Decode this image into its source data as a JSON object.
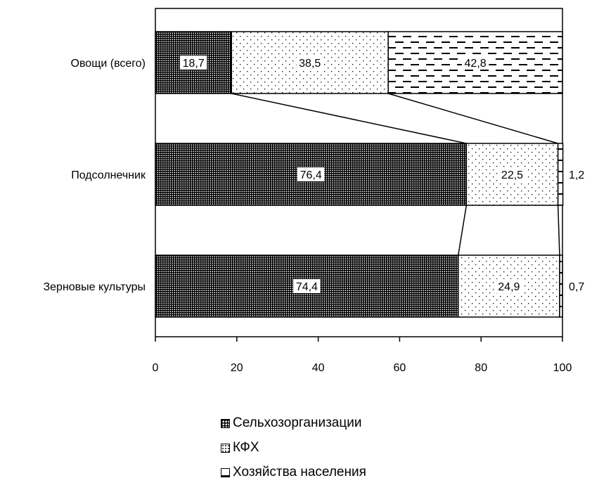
{
  "chart_data": {
    "type": "bar",
    "orientation": "horizontal",
    "stacked": true,
    "categories": [
      "Овощи (всего)",
      "Подсолнечник",
      "Зерновые культуры"
    ],
    "series": [
      {
        "name": "Сельхозорганизации",
        "values": [
          18.7,
          76.4,
          74.4
        ],
        "labels": [
          "18,7",
          "76,4",
          "74,4"
        ],
        "pattern": "grid"
      },
      {
        "name": "КФХ",
        "values": [
          38.5,
          22.5,
          24.9
        ],
        "labels": [
          "38,5",
          "22,5",
          "24,9"
        ],
        "pattern": "dots"
      },
      {
        "name": "Хозяйства населения",
        "values": [
          42.8,
          1.2,
          0.7
        ],
        "labels": [
          "42,8",
          "1,2",
          "0,7"
        ],
        "pattern": "dashes"
      }
    ],
    "xlim": [
      0,
      100
    ],
    "xticks": [
      "0",
      "20",
      "40",
      "60",
      "80",
      "100"
    ],
    "series_lines": true,
    "legend_position": "bottom",
    "grid": false
  }
}
